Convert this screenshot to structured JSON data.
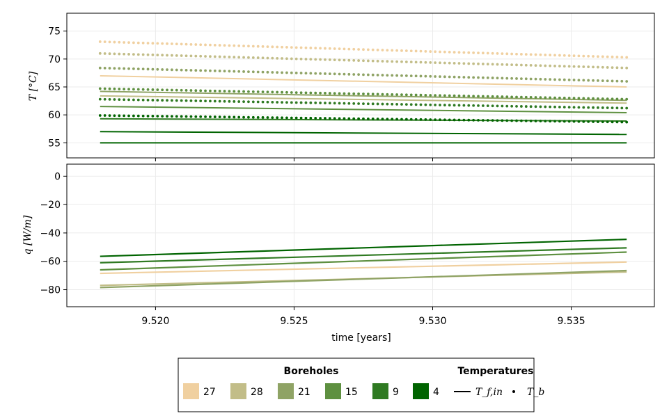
{
  "chart_data": [
    {
      "type": "line",
      "panel": "top",
      "ylabel": "T [°C]",
      "xlim": [
        9.5168,
        9.538
      ],
      "ylim": [
        52.3,
        78.2
      ],
      "yticks": [
        55,
        60,
        65,
        70,
        75
      ],
      "xticks": [
        9.52,
        9.525,
        9.53,
        9.535
      ],
      "grid": true,
      "series": [
        {
          "name": "27",
          "color": "#f0d0a0",
          "Tf_in": [
            9.518,
            67.0,
            9.537,
            65.0
          ],
          "Tb": [
            9.518,
            73.1,
            9.537,
            70.3
          ]
        },
        {
          "name": "28",
          "color": "#c2bd88",
          "Tf_in": [
            9.518,
            63.4,
            9.537,
            62.1
          ],
          "Tb": [
            9.518,
            71.0,
            9.537,
            68.4
          ]
        },
        {
          "name": "21",
          "color": "#8fa365",
          "Tf_in": [
            9.518,
            64.2,
            9.537,
            62.6
          ],
          "Tb": [
            9.518,
            68.4,
            9.537,
            66.0
          ]
        },
        {
          "name": "15",
          "color": "#5e9040",
          "Tf_in": [
            9.518,
            61.5,
            9.537,
            60.4
          ],
          "Tb": [
            9.518,
            64.7,
            9.537,
            62.8
          ]
        },
        {
          "name": "9",
          "color": "#2f7a22",
          "Tf_in": [
            9.518,
            59.3,
            9.537,
            58.9
          ],
          "Tb": [
            9.518,
            62.8,
            9.537,
            61.2
          ]
        },
        {
          "name": "4",
          "color": "#006400",
          "Tf_in": [
            9.518,
            57.0,
            9.537,
            56.5
          ],
          "Tb": [
            9.518,
            59.9,
            9.537,
            58.7
          ]
        },
        {
          "name": "4",
          "color": "#006400",
          "Tf_in": [
            9.518,
            55.0,
            9.537,
            55.0
          ],
          "Tb": null
        }
      ]
    },
    {
      "type": "line",
      "panel": "bottom",
      "ylabel": "q [W/m]",
      "xlabel": "time [years]",
      "xlim": [
        9.5168,
        9.538
      ],
      "ylim": [
        -92,
        8.5
      ],
      "yticks": [
        0,
        -20,
        -40,
        -60,
        -80
      ],
      "xticks": [
        9.52,
        9.525,
        9.53,
        9.535
      ],
      "xticklabels": [
        "9.520",
        "9.525",
        "9.530",
        "9.535"
      ],
      "grid": true,
      "series": [
        {
          "name": "27",
          "color": "#f0d0a0",
          "x": [
            9.518,
            9.537
          ],
          "y": [
            -68.5,
            -60.5
          ]
        },
        {
          "name": "28",
          "color": "#c2bd88",
          "x": [
            9.518,
            9.537
          ],
          "y": [
            -77.0,
            -67.5
          ]
        },
        {
          "name": "21",
          "color": "#8fa365",
          "x": [
            9.518,
            9.537
          ],
          "y": [
            -78.5,
            -66.5
          ]
        },
        {
          "name": "15",
          "color": "#5e9040",
          "x": [
            9.518,
            9.537
          ],
          "y": [
            -66.0,
            -53.5
          ]
        },
        {
          "name": "9",
          "color": "#2f7a22",
          "x": [
            9.518,
            9.537
          ],
          "y": [
            -61.0,
            -50.5
          ]
        },
        {
          "name": "4",
          "color": "#006400",
          "x": [
            9.518,
            9.537
          ],
          "y": [
            -56.5,
            -44.5
          ]
        }
      ]
    }
  ],
  "legend": {
    "boreholes_title": "Boreholes",
    "temperatures_title": "Temperatures",
    "boreholes": [
      {
        "label": "27",
        "color": "#f0d0a0"
      },
      {
        "label": "28",
        "color": "#c2bd88"
      },
      {
        "label": "21",
        "color": "#8fa365"
      },
      {
        "label": "15",
        "color": "#5e9040"
      },
      {
        "label": "9",
        "color": "#2f7a22"
      },
      {
        "label": "4",
        "color": "#006400"
      }
    ],
    "temperatures": [
      {
        "label": "T_f,in",
        "marker": "line"
      },
      {
        "label": "T_b",
        "marker": "dot"
      }
    ]
  }
}
